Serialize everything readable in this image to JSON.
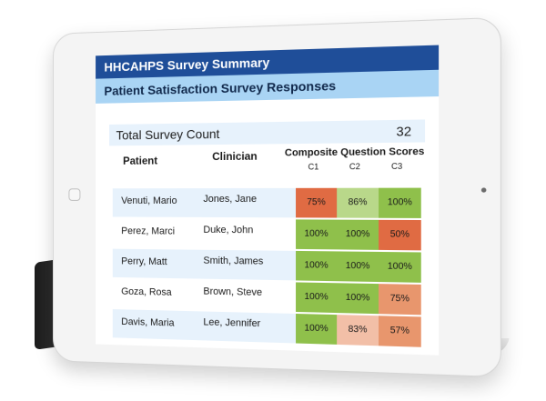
{
  "header": {
    "title": "HHCAHPS Survey Summary",
    "subtitle": "Patient Satisfaction Survey Responses"
  },
  "summary": {
    "label": "Total Survey Count",
    "value": "32"
  },
  "columns": {
    "patient": "Patient",
    "clinician": "Clinician",
    "composite": "Composite Question Scores",
    "c1": "C1",
    "c2": "C2",
    "c3": "C3"
  },
  "rows": [
    {
      "patient": "Venuti, Mario",
      "clinician": "Jones, Jane",
      "c1": "75%",
      "c2": "86%",
      "c3": "100%"
    },
    {
      "patient": "Perez, Marci",
      "clinician": "Duke, John",
      "c1": "100%",
      "c2": "100%",
      "c3": "50%"
    },
    {
      "patient": "Perry, Matt",
      "clinician": "Smith, James",
      "c1": "100%",
      "c2": "100%",
      "c3": "100%"
    },
    {
      "patient": "Goza, Rosa",
      "clinician": "Brown, Steve",
      "c1": "100%",
      "c2": "100%",
      "c3": "75%"
    },
    {
      "patient": "Davis, Maria",
      "clinician": "Lee, Jennifer",
      "c1": "100%",
      "c2": "83%",
      "c3": "57%"
    }
  ],
  "colors": {
    "title_bar": "#1f4e99",
    "subtitle_bar": "#a9d4f4",
    "score_high": "#8fc04b",
    "score_low": "#e06b43",
    "score_mid": "#e8966d",
    "score_light": "#f2bfa7"
  }
}
